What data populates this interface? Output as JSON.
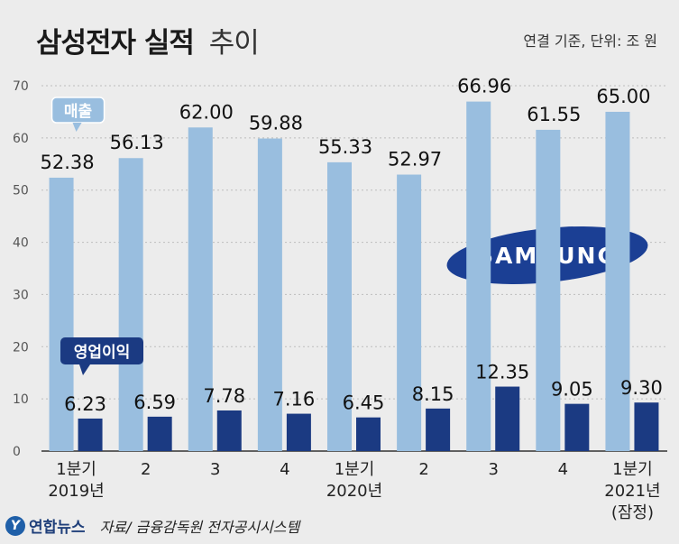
{
  "header": {
    "title": "삼성전자 실적",
    "subtitle": "추이",
    "unit_note": "연결 기준, 단위: 조 원"
  },
  "footer": {
    "agency": "연합뉴스",
    "source": "자료/ 금융감독원 전자공시시스템"
  },
  "logo": {
    "brand": "SAMSUNG",
    "color": "#1b3f94"
  },
  "colors": {
    "revenue": "#99bedf",
    "operating_profit": "#1b3a82",
    "axis": "#555555",
    "grid": "#bdbdbd"
  },
  "chart_data": {
    "type": "bar",
    "categories": [
      "1분기 2019년",
      "2",
      "3",
      "4",
      "1분기 2020년",
      "2",
      "3",
      "4",
      "1분기 2021년 (잠정)"
    ],
    "category_lines": [
      [
        "1분기",
        "2019년"
      ],
      [
        "2"
      ],
      [
        "3"
      ],
      [
        "4"
      ],
      [
        "1분기",
        "2020년"
      ],
      [
        "2"
      ],
      [
        "3"
      ],
      [
        "4"
      ],
      [
        "1분기",
        "2021년",
        "(잠정)"
      ]
    ],
    "series": [
      {
        "name": "매출",
        "values": [
          52.38,
          56.13,
          62.0,
          59.88,
          55.33,
          52.97,
          66.96,
          61.55,
          65.0
        ],
        "labels": [
          "52.38",
          "56.13",
          "62.00",
          "59.88",
          "55.33",
          "52.97",
          "66.96",
          "61.55",
          "65.00"
        ]
      },
      {
        "name": "영업이익",
        "values": [
          6.23,
          6.59,
          7.78,
          7.16,
          6.45,
          8.15,
          12.35,
          9.05,
          9.3
        ],
        "labels": [
          "6.23",
          "6.59",
          "7.78",
          "7.16",
          "6.45",
          "8.15",
          "12.35",
          "9.05",
          "9.30"
        ]
      }
    ],
    "ylim": [
      0,
      70
    ],
    "yticks": [
      "0",
      "10",
      "20",
      "30",
      "40",
      "50",
      "60",
      "70"
    ],
    "grid": true,
    "legend": "callouts on first quarter bars"
  }
}
